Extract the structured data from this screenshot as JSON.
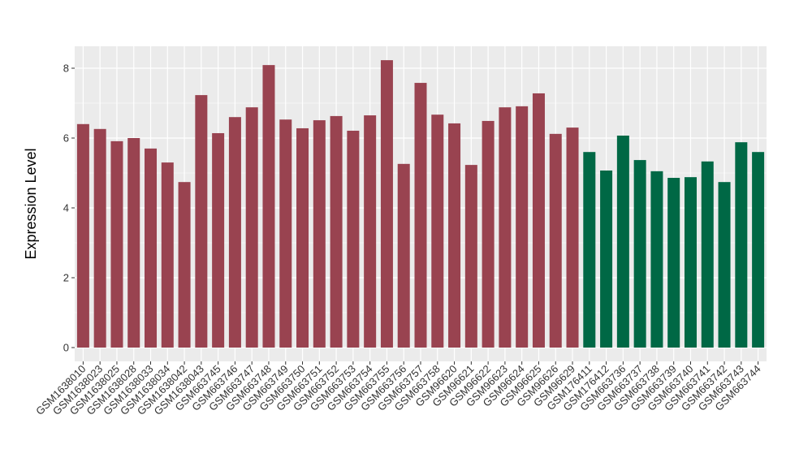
{
  "chart_data": {
    "type": "bar",
    "title": "",
    "xlabel": "",
    "ylabel": "Expression Level",
    "ylim": [
      0,
      8.6
    ],
    "yticks": [
      0,
      2,
      4,
      6,
      8
    ],
    "grid": true,
    "colors": {
      "group1": "#994350",
      "group2": "#006845",
      "panel": "#ebebeb",
      "grid": "#ffffff"
    },
    "categories": [
      "GSM1638010",
      "GSM1638023",
      "GSM1638025",
      "GSM1638028",
      "GSM1638033",
      "GSM1638034",
      "GSM1638042",
      "GSM1638043",
      "GSM663745",
      "GSM663746",
      "GSM663747",
      "GSM663748",
      "GSM663749",
      "GSM663750",
      "GSM663751",
      "GSM663752",
      "GSM663753",
      "GSM663754",
      "GSM663755",
      "GSM663756",
      "GSM663757",
      "GSM663758",
      "GSM96620",
      "GSM96621",
      "GSM96622",
      "GSM96623",
      "GSM96624",
      "GSM96625",
      "GSM96626",
      "GSM96629",
      "GSM176411",
      "GSM176412",
      "GSM663736",
      "GSM663737",
      "GSM663738",
      "GSM663739",
      "GSM663740",
      "GSM663741",
      "GSM663742",
      "GSM663743",
      "GSM663744"
    ],
    "values": [
      6.4,
      6.26,
      5.91,
      6.0,
      5.7,
      5.3,
      4.74,
      7.23,
      6.14,
      6.6,
      6.88,
      8.09,
      6.53,
      6.28,
      6.51,
      6.63,
      6.21,
      6.65,
      8.23,
      5.26,
      7.58,
      6.67,
      6.42,
      5.23,
      6.49,
      6.88,
      6.91,
      7.28,
      6.12,
      6.3,
      5.6,
      5.07,
      6.07,
      5.37,
      5.05,
      4.86,
      4.88,
      5.33,
      4.74,
      5.88,
      5.6
    ],
    "groups": [
      1,
      1,
      1,
      1,
      1,
      1,
      1,
      1,
      1,
      1,
      1,
      1,
      1,
      1,
      1,
      1,
      1,
      1,
      1,
      1,
      1,
      1,
      1,
      1,
      1,
      1,
      1,
      1,
      1,
      1,
      2,
      2,
      2,
      2,
      2,
      2,
      2,
      2,
      2,
      2,
      2
    ]
  }
}
